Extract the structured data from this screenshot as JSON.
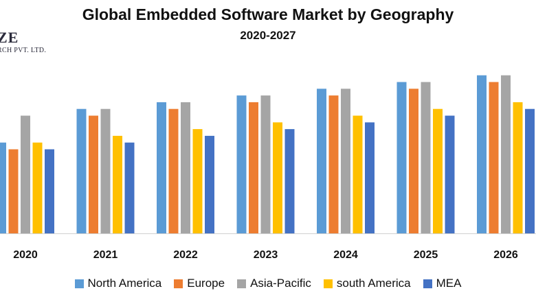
{
  "logo": {
    "main": "ZE",
    "sub": "RCH PVT. LTD."
  },
  "chart_data": {
    "type": "bar",
    "title": "Global Embedded Software Market by Geography",
    "subtitle": "2020-2027",
    "categories": [
      "2020",
      "2021",
      "2022",
      "2023",
      "2024",
      "2025",
      "2026"
    ],
    "series": [
      {
        "name": "North America",
        "color": "#5B9BD5",
        "values": [
          27,
          37,
          39,
          41,
          43,
          45,
          47
        ]
      },
      {
        "name": "Europe",
        "color": "#ED7D31",
        "values": [
          25,
          35,
          37,
          39,
          41,
          43,
          45
        ]
      },
      {
        "name": "Asia-Pacific",
        "color": "#A5A5A5",
        "values": [
          35,
          37,
          39,
          41,
          43,
          45,
          47
        ]
      },
      {
        "name": "south America",
        "color": "#FFC000",
        "values": [
          27,
          29,
          31,
          33,
          35,
          37,
          39
        ]
      },
      {
        "name": "MEA",
        "color": "#4472C4",
        "values": [
          25,
          27,
          29,
          31,
          33,
          35,
          37
        ]
      }
    ],
    "xlabel": "",
    "ylabel": "",
    "ylim": [
      0,
      50
    ],
    "grid": false,
    "legend": "bottom"
  }
}
